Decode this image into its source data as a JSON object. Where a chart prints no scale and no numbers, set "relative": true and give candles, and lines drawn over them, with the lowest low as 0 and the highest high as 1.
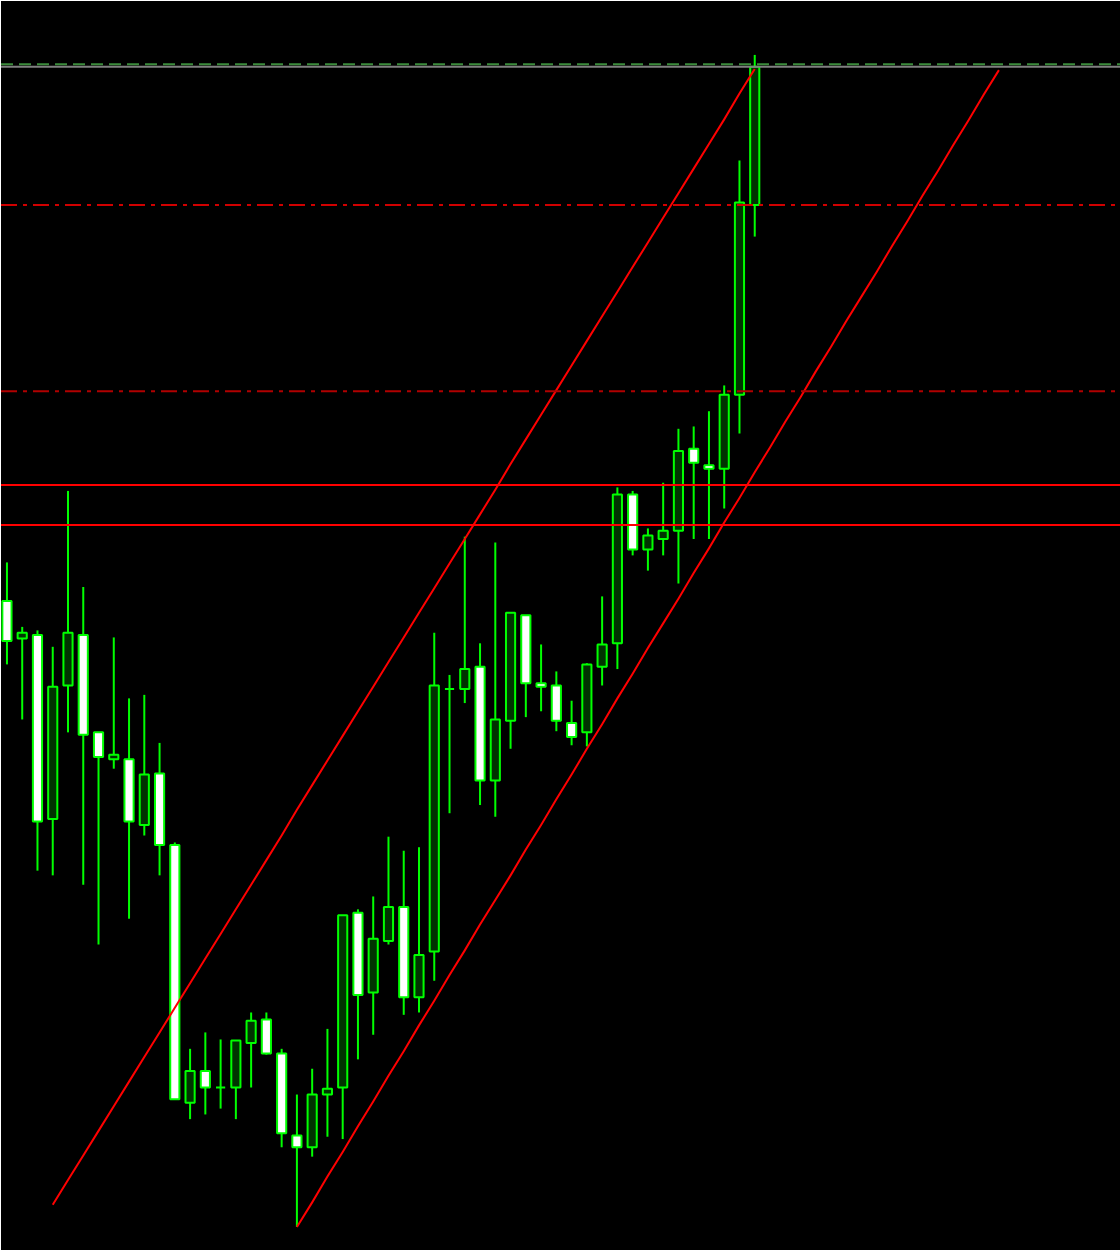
{
  "chart_data": {
    "type": "candlestick",
    "relative": true,
    "grid": false,
    "categories": [
      null,
      null,
      null,
      null,
      null,
      null,
      null,
      null,
      null,
      null,
      null,
      null,
      null,
      null,
      null,
      null,
      null,
      null,
      null,
      null,
      null,
      null,
      null,
      null,
      null,
      null,
      null,
      null,
      null,
      null,
      null,
      null,
      null,
      null,
      null,
      null,
      null,
      null,
      null,
      null,
      null,
      null,
      null,
      null,
      null,
      null,
      null,
      null,
      null,
      null,
      null,
      null,
      null,
      null,
      null,
      null,
      null,
      null,
      null,
      null,
      null,
      null,
      null,
      null,
      null,
      null,
      null,
      null,
      null,
      null,
      null,
      null,
      null
    ],
    "color": "#00ff00",
    "colors": [
      "#ffffff",
      "#003300",
      "#ffffff",
      "#003300",
      "#003300",
      "#ffffff",
      "#ffffff",
      "#003300",
      "#ffffff",
      "#003300",
      "#ffffff",
      "#ffffff",
      "#003300",
      "#ffffff",
      "#00ff00",
      "#003300",
      "#003300",
      "#ffffff",
      "#ffffff",
      "#ffffff",
      "#003300",
      "#003300",
      "#003300",
      "#ffffff",
      "#003300",
      "#003300",
      "#ffffff",
      "#003300",
      "#003300",
      "#00ff00",
      "#003300",
      "#ffffff",
      "#003300",
      "#003300",
      "#ffffff",
      "#ffffff",
      "#ffffff",
      "#ffffff",
      "#003300",
      "#003300",
      "#003300",
      "#ffffff",
      "#003300",
      "#003300",
      "#003300",
      "#ffffff",
      "#ffffff",
      "#003300",
      "#003300",
      "#003300",
      null,
      null,
      null,
      null,
      null,
      null,
      null,
      null,
      null,
      null,
      null,
      null,
      null,
      null,
      null,
      null,
      null,
      null,
      null,
      null,
      null,
      null,
      null
    ],
    "ohlc": [
      [
        0.534,
        0.567,
        0.48,
        0.5
      ],
      [
        0.502,
        0.512,
        0.433,
        0.507
      ],
      [
        0.505,
        0.509,
        0.304,
        0.346
      ],
      [
        0.348,
        0.495,
        0.3,
        0.461
      ],
      [
        0.462,
        0.628,
        0.422,
        0.507
      ],
      [
        0.505,
        0.546,
        0.292,
        0.42
      ],
      [
        0.422,
        0.422,
        0.241,
        0.401
      ],
      [
        0.399,
        0.503,
        0.391,
        0.403
      ],
      [
        0.399,
        0.451,
        0.263,
        0.346
      ],
      [
        0.343,
        0.454,
        0.334,
        0.386
      ],
      [
        0.387,
        0.413,
        0.3,
        0.326
      ],
      [
        0.326,
        0.328,
        0.109,
        0.109
      ],
      [
        0.106,
        0.152,
        0.092,
        0.133
      ],
      [
        0.133,
        0.166,
        0.096,
        0.119
      ],
      [
        0.119,
        0.16,
        0.101,
        0.119
      ],
      [
        0.119,
        0.159,
        0.092,
        0.159
      ],
      [
        0.157,
        0.183,
        0.119,
        0.176
      ],
      [
        0.177,
        0.183,
        0.147,
        0.148
      ],
      [
        0.148,
        0.152,
        0.068,
        0.08
      ],
      [
        0.078,
        0.113,
        0.0,
        0.068
      ],
      [
        0.068,
        0.135,
        0.06,
        0.113
      ],
      [
        0.113,
        0.169,
        0.077,
        0.118
      ],
      [
        0.119,
        0.266,
        0.075,
        0.266
      ],
      [
        0.268,
        0.271,
        0.143,
        0.198
      ],
      [
        0.2,
        0.282,
        0.164,
        0.246
      ],
      [
        0.244,
        0.333,
        0.241,
        0.273
      ],
      [
        0.273,
        0.321,
        0.181,
        0.196
      ],
      [
        0.196,
        0.324,
        0.183,
        0.232
      ],
      [
        0.235,
        0.507,
        0.21,
        0.462
      ],
      [
        0.459,
        0.471,
        0.353,
        0.459
      ],
      [
        0.459,
        0.589,
        0.447,
        0.476
      ],
      [
        0.478,
        0.498,
        0.36,
        0.381
      ],
      [
        0.381,
        0.584,
        0.35,
        0.433
      ],
      [
        0.432,
        0.524,
        0.408,
        0.524
      ],
      [
        0.522,
        0.522,
        0.435,
        0.464
      ],
      [
        0.464,
        0.497,
        0.44,
        0.461
      ],
      [
        0.462,
        0.474,
        0.423,
        0.432
      ],
      [
        0.43,
        0.449,
        0.411,
        0.418
      ],
      [
        0.422,
        0.481,
        0.41,
        0.48
      ],
      [
        0.478,
        0.538,
        0.462,
        0.497
      ],
      [
        0.498,
        0.631,
        0.476,
        0.625
      ],
      [
        0.625,
        0.628,
        0.573,
        0.578
      ],
      [
        0.578,
        0.596,
        0.56,
        0.59
      ],
      [
        0.587,
        0.635,
        0.573,
        0.594
      ],
      [
        0.594,
        0.681,
        0.549,
        0.662
      ],
      [
        0.664,
        0.683,
        0.587,
        0.652
      ],
      [
        0.65,
        0.696,
        0.587,
        0.647
      ],
      [
        0.647,
        0.718,
        0.613,
        0.71
      ],
      [
        0.71,
        0.91,
        0.677,
        0.874
      ],
      [
        0.872,
        1.0,
        0.845,
        0.99
      ],
      null,
      null,
      null,
      null,
      null,
      null,
      null,
      null,
      null,
      null,
      null,
      null,
      null,
      null,
      null,
      null,
      null,
      null,
      null,
      null,
      null,
      null,
      null
    ],
    "series": [
      {
        "type": "line",
        "color": "#ff0000",
        "values": [
          null,
          null,
          null,
          0.019,
          0.04,
          0.061,
          0.082,
          0.103,
          0.124,
          0.145,
          0.166,
          0.187,
          0.208,
          0.229,
          0.25,
          0.271,
          0.292,
          0.313,
          0.334,
          0.356,
          0.377,
          0.398,
          0.419,
          0.44,
          0.461,
          0.482,
          0.503,
          0.524,
          0.545,
          0.566,
          0.587,
          0.608,
          0.629,
          0.651,
          0.672,
          0.693,
          0.714,
          0.735,
          0.756,
          0.777,
          0.798,
          0.819,
          0.84,
          0.861,
          0.882,
          0.903,
          0.924,
          0.945,
          0.967,
          0.988,
          null,
          null,
          null,
          null,
          null,
          null,
          null,
          null,
          null,
          null,
          null,
          null,
          null,
          null,
          null,
          null,
          null,
          null,
          null,
          null,
          null,
          null,
          null
        ]
      },
      {
        "type": "line",
        "color": "#ff0000",
        "values": [
          null,
          null,
          null,
          null,
          null,
          null,
          null,
          null,
          null,
          null,
          null,
          null,
          null,
          null,
          null,
          null,
          null,
          null,
          null,
          0,
          0.021,
          0.043,
          0.064,
          0.086,
          0.107,
          0.129,
          0.15,
          0.172,
          0.193,
          0.215,
          0.236,
          0.258,
          0.279,
          0.3,
          0.322,
          0.343,
          0.365,
          0.386,
          0.408,
          0.429,
          0.451,
          0.472,
          0.494,
          0.515,
          0.536,
          0.558,
          0.579,
          0.601,
          0.622,
          0.644,
          0.665,
          0.687,
          0.708,
          0.73,
          0.751,
          0.773,
          0.794,
          0.815,
          0.837,
          0.858,
          0.88,
          0.901,
          0.923,
          0.944,
          0.966,
          0.987,
          null,
          null,
          null,
          null,
          null,
          null,
          null
        ]
      }
    ],
    "ref_lines": [
      {
        "axis": "y",
        "value": 0.633,
        "color": "#ff0000",
        "line_style": "solid"
      },
      {
        "axis": "y",
        "value": 0.599,
        "color": "#ff0000",
        "line_style": "solid"
      },
      {
        "axis": "y",
        "value": 0.872,
        "color": "#d00000",
        "line_style": "dashdot"
      },
      {
        "axis": "y",
        "value": 0.713,
        "color": "#b00000",
        "line_style": "dashdot"
      },
      {
        "axis": "y",
        "value": 0.99,
        "color": "#808080",
        "line_style": "solid"
      },
      {
        "axis": "y",
        "value": 0.992,
        "color": "#3c8c3c",
        "line_style": "dashed"
      }
    ]
  }
}
